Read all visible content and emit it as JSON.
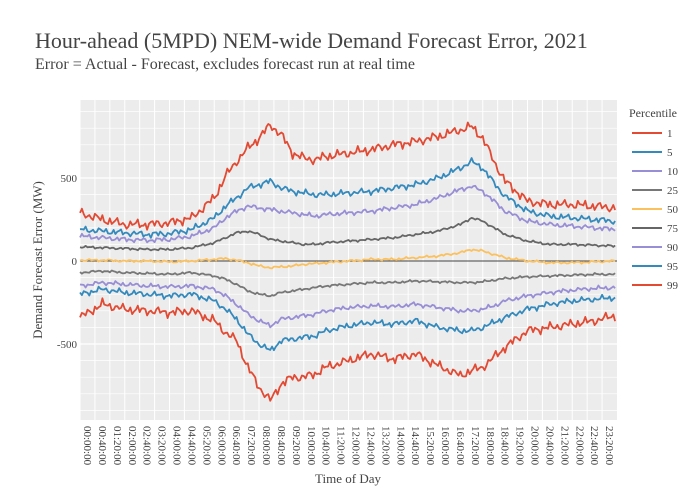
{
  "chart_data": {
    "type": "line",
    "title": "Hour-ahead (5MPD) NEM-wide Demand Forecast Error, 2021",
    "subtitle": "Error = Actual - Forecast, excludes forecast run at real time",
    "xlabel": "Time of Day",
    "ylabel": "Demand Forecast Error (MW)",
    "ylim": [
      -950,
      950
    ],
    "yticks": [
      500,
      0,
      -500
    ],
    "x_ticks": [
      "00:00:00",
      "00:40:00",
      "01:20:00",
      "02:00:00",
      "02:40:00",
      "03:20:00",
      "04:00:00",
      "04:40:00",
      "05:20:00",
      "06:00:00",
      "06:40:00",
      "07:20:00",
      "08:00:00",
      "08:40:00",
      "09:20:00",
      "10:00:00",
      "10:40:00",
      "11:20:00",
      "12:00:00",
      "12:40:00",
      "13:20:00",
      "14:00:00",
      "14:40:00",
      "15:20:00",
      "16:00:00",
      "16:40:00",
      "17:20:00",
      "18:00:00",
      "18:40:00",
      "19:20:00",
      "20:00:00",
      "20:40:00",
      "21:20:00",
      "22:00:00",
      "22:40:00",
      "23:20:00"
    ],
    "grid": true,
    "legend_title": "Percentile",
    "legend_position": "right",
    "x_hours": [
      0,
      1,
      2,
      3,
      4,
      5,
      6,
      6.5,
      7,
      7.5,
      8,
      8.5,
      9,
      9.5,
      10,
      10.5,
      11,
      12,
      13,
      14,
      15,
      16,
      17,
      17.5,
      18,
      18.5,
      19,
      20,
      21,
      22,
      23,
      23.9
    ],
    "series": [
      {
        "name": "1",
        "color": "#e24a33",
        "values": [
          -340,
          -260,
          -290,
          -300,
          -310,
          -300,
          -360,
          -430,
          -480,
          -640,
          -760,
          -840,
          -740,
          -700,
          -700,
          -680,
          -640,
          -600,
          -560,
          -590,
          -560,
          -630,
          -690,
          -660,
          -640,
          -580,
          -520,
          -420,
          -400,
          -380,
          -360,
          -330
        ]
      },
      {
        "name": "5",
        "color": "#348abd",
        "values": [
          -200,
          -170,
          -190,
          -200,
          -210,
          -200,
          -240,
          -290,
          -350,
          -440,
          -500,
          -540,
          -480,
          -470,
          -460,
          -450,
          -420,
          -390,
          -370,
          -380,
          -360,
          -400,
          -420,
          -420,
          -400,
          -370,
          -340,
          -290,
          -260,
          -240,
          -230,
          -220
        ]
      },
      {
        "name": "10",
        "color": "#988ed5",
        "values": [
          -150,
          -130,
          -140,
          -150,
          -155,
          -150,
          -170,
          -210,
          -260,
          -320,
          -360,
          -390,
          -350,
          -340,
          -330,
          -320,
          -300,
          -280,
          -270,
          -275,
          -260,
          -280,
          -300,
          -300,
          -290,
          -270,
          -240,
          -210,
          -190,
          -175,
          -165,
          -160
        ]
      },
      {
        "name": "25",
        "color": "#777777",
        "values": [
          -70,
          -60,
          -70,
          -75,
          -80,
          -70,
          -90,
          -110,
          -140,
          -180,
          -200,
          -210,
          -190,
          -180,
          -170,
          -160,
          -150,
          -140,
          -130,
          -130,
          -120,
          -125,
          -130,
          -130,
          -125,
          -115,
          -105,
          -95,
          -90,
          -85,
          -80,
          -80
        ]
      },
      {
        "name": "50",
        "color": "#fbc15e",
        "values": [
          5,
          5,
          0,
          0,
          -5,
          0,
          10,
          15,
          5,
          -10,
          -30,
          -40,
          -35,
          -30,
          -20,
          -15,
          -10,
          0,
          10,
          10,
          20,
          30,
          50,
          70,
          60,
          40,
          20,
          0,
          -10,
          -10,
          -5,
          0
        ]
      },
      {
        "name": "75",
        "color": "#666666",
        "values": [
          85,
          80,
          75,
          70,
          70,
          80,
          110,
          140,
          170,
          180,
          160,
          130,
          120,
          110,
          100,
          100,
          110,
          120,
          130,
          140,
          160,
          180,
          220,
          260,
          240,
          200,
          160,
          120,
          100,
          100,
          95,
          90
        ]
      },
      {
        "name": "90",
        "color": "#988ed5",
        "values": [
          150,
          140,
          130,
          125,
          130,
          150,
          200,
          260,
          300,
          330,
          320,
          310,
          300,
          290,
          280,
          270,
          280,
          290,
          300,
          320,
          340,
          380,
          430,
          450,
          420,
          360,
          300,
          240,
          220,
          210,
          200,
          190
        ]
      },
      {
        "name": "95",
        "color": "#348abd",
        "values": [
          190,
          180,
          170,
          160,
          165,
          190,
          260,
          330,
          380,
          440,
          460,
          480,
          440,
          420,
          410,
          400,
          400,
          410,
          420,
          440,
          460,
          500,
          560,
          600,
          560,
          470,
          390,
          300,
          270,
          260,
          250,
          240
        ]
      },
      {
        "name": "99",
        "color": "#e24a33",
        "values": [
          290,
          250,
          220,
          220,
          230,
          260,
          380,
          510,
          600,
          680,
          740,
          820,
          760,
          650,
          620,
          610,
          630,
          650,
          670,
          700,
          720,
          750,
          790,
          810,
          740,
          600,
          480,
          360,
          340,
          340,
          330,
          320
        ]
      }
    ]
  }
}
